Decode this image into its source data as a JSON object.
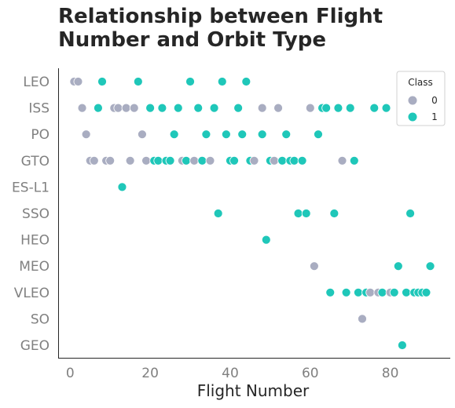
{
  "chart_data": {
    "type": "scatter",
    "title": "Relationship between Flight Number and Orbit Type",
    "xlabel": "Flight Number",
    "ylabel": "",
    "xlim": [
      -3,
      95
    ],
    "xticks": [
      0,
      20,
      40,
      60,
      80
    ],
    "categories": [
      "LEO",
      "ISS",
      "PO",
      "GTO",
      "ES-L1",
      "SSO",
      "HEO",
      "MEO",
      "VLEO",
      "SO",
      "GEO"
    ],
    "legend": {
      "title": "Class",
      "placement": "top-right",
      "entries": [
        "0",
        "1"
      ]
    },
    "colors": {
      "0": "#a9adc1",
      "1": "#1fc7b9"
    },
    "grid": false,
    "points": [
      {
        "x": 1,
        "y": "LEO",
        "class": 0
      },
      {
        "x": 2,
        "y": "LEO",
        "class": 0
      },
      {
        "x": 8,
        "y": "LEO",
        "class": 1
      },
      {
        "x": 17,
        "y": "LEO",
        "class": 1
      },
      {
        "x": 30,
        "y": "LEO",
        "class": 1
      },
      {
        "x": 38,
        "y": "LEO",
        "class": 1
      },
      {
        "x": 44,
        "y": "LEO",
        "class": 1
      },
      {
        "x": 3,
        "y": "ISS",
        "class": 0
      },
      {
        "x": 7,
        "y": "ISS",
        "class": 1
      },
      {
        "x": 11,
        "y": "ISS",
        "class": 0
      },
      {
        "x": 12,
        "y": "ISS",
        "class": 0
      },
      {
        "x": 14,
        "y": "ISS",
        "class": 0
      },
      {
        "x": 16,
        "y": "ISS",
        "class": 0
      },
      {
        "x": 20,
        "y": "ISS",
        "class": 1
      },
      {
        "x": 23,
        "y": "ISS",
        "class": 1
      },
      {
        "x": 27,
        "y": "ISS",
        "class": 1
      },
      {
        "x": 32,
        "y": "ISS",
        "class": 1
      },
      {
        "x": 36,
        "y": "ISS",
        "class": 1
      },
      {
        "x": 42,
        "y": "ISS",
        "class": 1
      },
      {
        "x": 48,
        "y": "ISS",
        "class": 0
      },
      {
        "x": 52,
        "y": "ISS",
        "class": 0
      },
      {
        "x": 60,
        "y": "ISS",
        "class": 0
      },
      {
        "x": 63,
        "y": "ISS",
        "class": 1
      },
      {
        "x": 64,
        "y": "ISS",
        "class": 1
      },
      {
        "x": 67,
        "y": "ISS",
        "class": 1
      },
      {
        "x": 70,
        "y": "ISS",
        "class": 1
      },
      {
        "x": 76,
        "y": "ISS",
        "class": 1
      },
      {
        "x": 79,
        "y": "ISS",
        "class": 1
      },
      {
        "x": 4,
        "y": "PO",
        "class": 0
      },
      {
        "x": 18,
        "y": "PO",
        "class": 0
      },
      {
        "x": 26,
        "y": "PO",
        "class": 1
      },
      {
        "x": 34,
        "y": "PO",
        "class": 1
      },
      {
        "x": 39,
        "y": "PO",
        "class": 1
      },
      {
        "x": 43,
        "y": "PO",
        "class": 1
      },
      {
        "x": 48,
        "y": "PO",
        "class": 1
      },
      {
        "x": 54,
        "y": "PO",
        "class": 1
      },
      {
        "x": 62,
        "y": "PO",
        "class": 1
      },
      {
        "x": 5,
        "y": "GTO",
        "class": 0
      },
      {
        "x": 6,
        "y": "GTO",
        "class": 0
      },
      {
        "x": 9,
        "y": "GTO",
        "class": 0
      },
      {
        "x": 10,
        "y": "GTO",
        "class": 0
      },
      {
        "x": 15,
        "y": "GTO",
        "class": 0
      },
      {
        "x": 19,
        "y": "GTO",
        "class": 0
      },
      {
        "x": 21,
        "y": "GTO",
        "class": 1
      },
      {
        "x": 22,
        "y": "GTO",
        "class": 1
      },
      {
        "x": 24,
        "y": "GTO",
        "class": 1
      },
      {
        "x": 25,
        "y": "GTO",
        "class": 1
      },
      {
        "x": 28,
        "y": "GTO",
        "class": 0
      },
      {
        "x": 29,
        "y": "GTO",
        "class": 1
      },
      {
        "x": 31,
        "y": "GTO",
        "class": 0
      },
      {
        "x": 33,
        "y": "GTO",
        "class": 1
      },
      {
        "x": 35,
        "y": "GTO",
        "class": 0
      },
      {
        "x": 40,
        "y": "GTO",
        "class": 1
      },
      {
        "x": 41,
        "y": "GTO",
        "class": 1
      },
      {
        "x": 45,
        "y": "GTO",
        "class": 1
      },
      {
        "x": 46,
        "y": "GTO",
        "class": 0
      },
      {
        "x": 50,
        "y": "GTO",
        "class": 1
      },
      {
        "x": 51,
        "y": "GTO",
        "class": 0
      },
      {
        "x": 53,
        "y": "GTO",
        "class": 1
      },
      {
        "x": 55,
        "y": "GTO",
        "class": 1
      },
      {
        "x": 56,
        "y": "GTO",
        "class": 1
      },
      {
        "x": 58,
        "y": "GTO",
        "class": 1
      },
      {
        "x": 68,
        "y": "GTO",
        "class": 0
      },
      {
        "x": 71,
        "y": "GTO",
        "class": 1
      },
      {
        "x": 13,
        "y": "ES-L1",
        "class": 1
      },
      {
        "x": 37,
        "y": "SSO",
        "class": 1
      },
      {
        "x": 57,
        "y": "SSO",
        "class": 1
      },
      {
        "x": 59,
        "y": "SSO",
        "class": 1
      },
      {
        "x": 66,
        "y": "SSO",
        "class": 1
      },
      {
        "x": 85,
        "y": "SSO",
        "class": 1
      },
      {
        "x": 49,
        "y": "HEO",
        "class": 1
      },
      {
        "x": 61,
        "y": "MEO",
        "class": 0
      },
      {
        "x": 82,
        "y": "MEO",
        "class": 1
      },
      {
        "x": 90,
        "y": "MEO",
        "class": 1
      },
      {
        "x": 65,
        "y": "VLEO",
        "class": 1
      },
      {
        "x": 69,
        "y": "VLEO",
        "class": 1
      },
      {
        "x": 72,
        "y": "VLEO",
        "class": 1
      },
      {
        "x": 74,
        "y": "VLEO",
        "class": 1
      },
      {
        "x": 75,
        "y": "VLEO",
        "class": 0
      },
      {
        "x": 77,
        "y": "VLEO",
        "class": 0
      },
      {
        "x": 78,
        "y": "VLEO",
        "class": 1
      },
      {
        "x": 80,
        "y": "VLEO",
        "class": 0
      },
      {
        "x": 81,
        "y": "VLEO",
        "class": 1
      },
      {
        "x": 84,
        "y": "VLEO",
        "class": 1
      },
      {
        "x": 86,
        "y": "VLEO",
        "class": 1
      },
      {
        "x": 87,
        "y": "VLEO",
        "class": 1
      },
      {
        "x": 88,
        "y": "VLEO",
        "class": 1
      },
      {
        "x": 89,
        "y": "VLEO",
        "class": 1
      },
      {
        "x": 73,
        "y": "SO",
        "class": 0
      },
      {
        "x": 83,
        "y": "GEO",
        "class": 1
      }
    ]
  }
}
